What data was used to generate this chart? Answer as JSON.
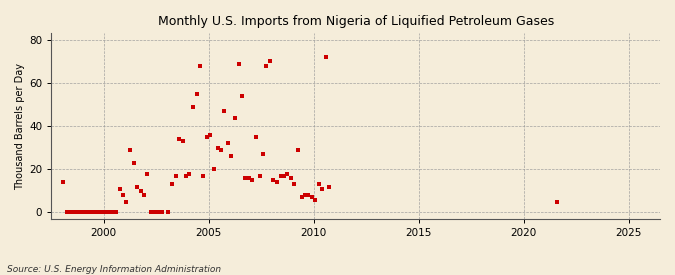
{
  "title": "Monthly U.S. Imports from Nigeria of Liquified Petroleum Gases",
  "ylabel": "Thousand Barrels per Day",
  "source": "Source: U.S. Energy Information Administration",
  "xlim": [
    1997.5,
    2026.5
  ],
  "ylim": [
    -3,
    83
  ],
  "xticks": [
    2000,
    2005,
    2010,
    2015,
    2020,
    2025
  ],
  "yticks": [
    0,
    20,
    40,
    60,
    80
  ],
  "background_color": "#f5edda",
  "plot_bg_color": "#f5edda",
  "marker_color": "#cc0000",
  "marker_size": 9,
  "data_points": [
    [
      1998.08,
      14
    ],
    [
      1998.25,
      0
    ],
    [
      1998.42,
      0
    ],
    [
      1998.58,
      0
    ],
    [
      1998.75,
      0
    ],
    [
      1998.92,
      0
    ],
    [
      1999.08,
      0
    ],
    [
      1999.25,
      0
    ],
    [
      1999.42,
      0
    ],
    [
      1999.58,
      0
    ],
    [
      1999.75,
      0
    ],
    [
      1999.92,
      0
    ],
    [
      2000.08,
      0
    ],
    [
      2000.25,
      0
    ],
    [
      2000.42,
      0
    ],
    [
      2000.58,
      0
    ],
    [
      2000.75,
      11
    ],
    [
      2000.92,
      8
    ],
    [
      2001.08,
      5
    ],
    [
      2001.25,
      29
    ],
    [
      2001.42,
      23
    ],
    [
      2001.58,
      12
    ],
    [
      2001.75,
      10
    ],
    [
      2001.92,
      8
    ],
    [
      2002.08,
      18
    ],
    [
      2002.25,
      0
    ],
    [
      2002.42,
      0
    ],
    [
      2002.58,
      0
    ],
    [
      2002.75,
      0
    ],
    [
      2003.08,
      0
    ],
    [
      2003.25,
      13
    ],
    [
      2003.42,
      17
    ],
    [
      2003.58,
      34
    ],
    [
      2003.75,
      33
    ],
    [
      2003.92,
      17
    ],
    [
      2004.08,
      18
    ],
    [
      2004.25,
      49
    ],
    [
      2004.42,
      55
    ],
    [
      2004.58,
      68
    ],
    [
      2004.75,
      17
    ],
    [
      2004.92,
      35
    ],
    [
      2005.08,
      36
    ],
    [
      2005.25,
      20
    ],
    [
      2005.42,
      30
    ],
    [
      2005.58,
      29
    ],
    [
      2005.75,
      47
    ],
    [
      2005.92,
      32
    ],
    [
      2006.08,
      26
    ],
    [
      2006.25,
      44
    ],
    [
      2006.42,
      69
    ],
    [
      2006.58,
      54
    ],
    [
      2006.75,
      16
    ],
    [
      2006.92,
      16
    ],
    [
      2007.08,
      15
    ],
    [
      2007.25,
      35
    ],
    [
      2007.42,
      17
    ],
    [
      2007.58,
      27
    ],
    [
      2007.75,
      68
    ],
    [
      2007.92,
      70
    ],
    [
      2008.08,
      15
    ],
    [
      2008.25,
      14
    ],
    [
      2008.42,
      17
    ],
    [
      2008.58,
      17
    ],
    [
      2008.75,
      18
    ],
    [
      2008.92,
      16
    ],
    [
      2009.08,
      13
    ],
    [
      2009.25,
      29
    ],
    [
      2009.42,
      7
    ],
    [
      2009.58,
      8
    ],
    [
      2009.75,
      8
    ],
    [
      2009.92,
      7
    ],
    [
      2010.08,
      6
    ],
    [
      2010.25,
      13
    ],
    [
      2010.42,
      11
    ],
    [
      2010.58,
      72
    ],
    [
      2010.75,
      12
    ],
    [
      2021.58,
      5
    ]
  ]
}
